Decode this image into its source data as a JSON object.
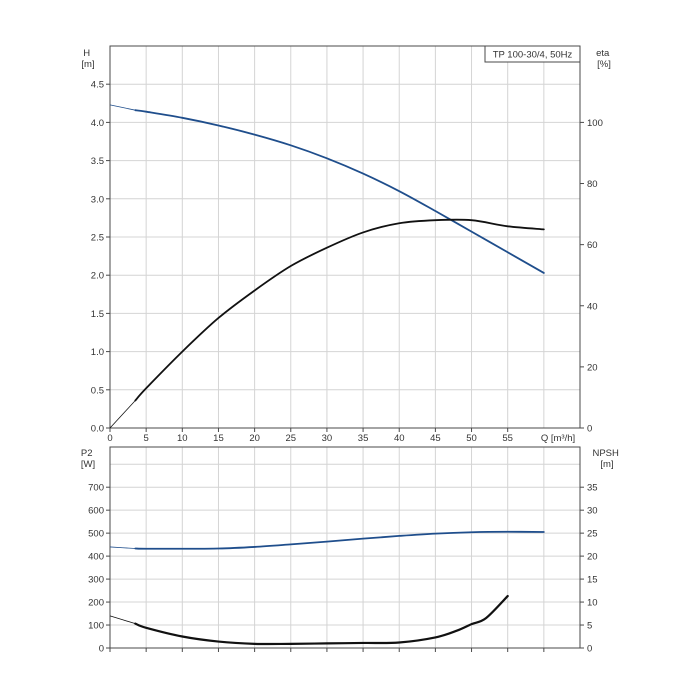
{
  "chart_data": [
    {
      "type": "line",
      "title": "TP 100-30/4, 50Hz",
      "xlabel": "Q [m³/h]",
      "ylabel": "H\n[m]",
      "y2label": "eta\n[%]",
      "xlim": [
        0,
        65
      ],
      "ylim": [
        0,
        5
      ],
      "y2lim": [
        0,
        125
      ],
      "xticks": [
        "0",
        "5",
        "10",
        "15",
        "20",
        "25",
        "30",
        "35",
        "40",
        "45",
        "50",
        "55"
      ],
      "yticks": [
        "0.0",
        "0.5",
        "1.0",
        "1.5",
        "2.0",
        "2.5",
        "3.0",
        "3.5",
        "4.0",
        "4.5"
      ],
      "y2ticks": [
        "0",
        "20",
        "40",
        "60",
        "80",
        "100"
      ],
      "grid": true,
      "series": [
        {
          "name": "",
          "axis": "left",
          "color": "#1f4e8c",
          "x": [
            0,
            3.5,
            5,
            10,
            15,
            20,
            25,
            30,
            35,
            40,
            45,
            50,
            55,
            60
          ],
          "values": [
            4.23,
            4.16,
            4.14,
            4.06,
            3.96,
            3.84,
            3.7,
            3.53,
            3.33,
            3.1,
            2.84,
            2.57,
            2.3,
            2.03
          ]
        },
        {
          "name": "",
          "axis": "right",
          "color": "#111111",
          "x": [
            0,
            3.5,
            5,
            10,
            15,
            20,
            25,
            30,
            35,
            40,
            45,
            50,
            55,
            60
          ],
          "values": [
            0,
            9,
            13,
            25,
            36,
            45,
            53,
            59,
            64,
            67,
            68,
            68,
            66,
            65
          ]
        }
      ]
    },
    {
      "type": "line",
      "title": "",
      "xlabel": "",
      "ylabel": "P2\n[W]",
      "y2label": "NPSH\n[m]",
      "xlim": [
        0,
        65
      ],
      "ylim": [
        0,
        875
      ],
      "y2lim": [
        0,
        43.75
      ],
      "yticks": [
        "0",
        "100",
        "200",
        "300",
        "400",
        "500",
        "600",
        "700"
      ],
      "y2ticks": [
        "0",
        "5",
        "10",
        "15",
        "20",
        "25",
        "30",
        "35"
      ],
      "grid": true,
      "series": [
        {
          "name": "",
          "axis": "left",
          "color": "#1f4e8c",
          "x": [
            0,
            3.5,
            5,
            10,
            15,
            20,
            25,
            30,
            35,
            40,
            45,
            50,
            55,
            60
          ],
          "values": [
            440,
            433,
            432,
            432,
            433,
            440,
            451,
            463,
            476,
            488,
            498,
            504,
            506,
            505
          ]
        },
        {
          "name": "",
          "axis": "right",
          "color": "#111111",
          "x": [
            0,
            3.5,
            5,
            10,
            15,
            20,
            25,
            30,
            35,
            40,
            45,
            48,
            50,
            52,
            55
          ],
          "values": [
            7,
            5.3,
            4.4,
            2.5,
            1.4,
            0.9,
            0.9,
            1.0,
            1.1,
            1.2,
            2.3,
            3.8,
            5.2,
            6.5,
            11.3
          ]
        }
      ]
    }
  ]
}
